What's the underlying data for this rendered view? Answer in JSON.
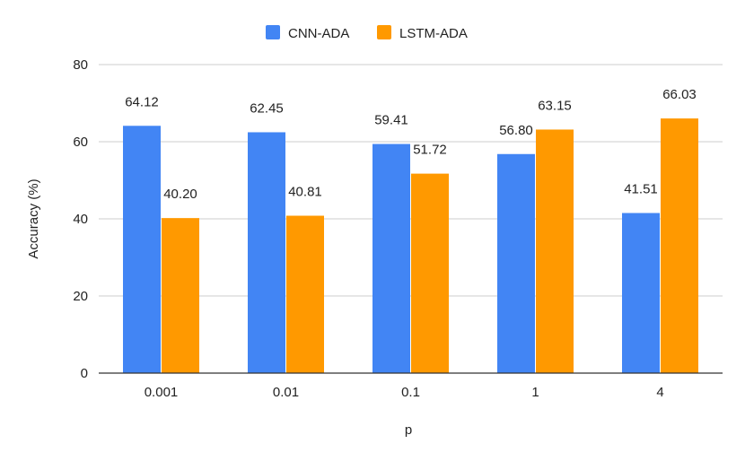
{
  "chart_data": {
    "type": "bar",
    "title": "",
    "xlabel": "p",
    "ylabel": "Accuracy (%)",
    "categories": [
      "0.001",
      "0.01",
      "0.1",
      "1",
      "4"
    ],
    "series": [
      {
        "name": "CNN-ADA",
        "color": "#4285f4",
        "values": [
          64.12,
          62.45,
          59.41,
          56.8,
          41.51
        ],
        "labels": [
          "64.12",
          "62.45",
          "59.41",
          "56.80",
          "41.51"
        ]
      },
      {
        "name": "LSTM-ADA",
        "color": "#ff9900",
        "values": [
          40.2,
          40.81,
          51.72,
          63.15,
          66.03
        ],
        "labels": [
          "40.20",
          "40.81",
          "51.72",
          "63.15",
          "66.03"
        ]
      }
    ],
    "ylim": [
      0,
      80
    ],
    "yticks": [
      "0",
      "20",
      "40",
      "60",
      "80"
    ],
    "grid": true,
    "legend_position": "top-center"
  }
}
